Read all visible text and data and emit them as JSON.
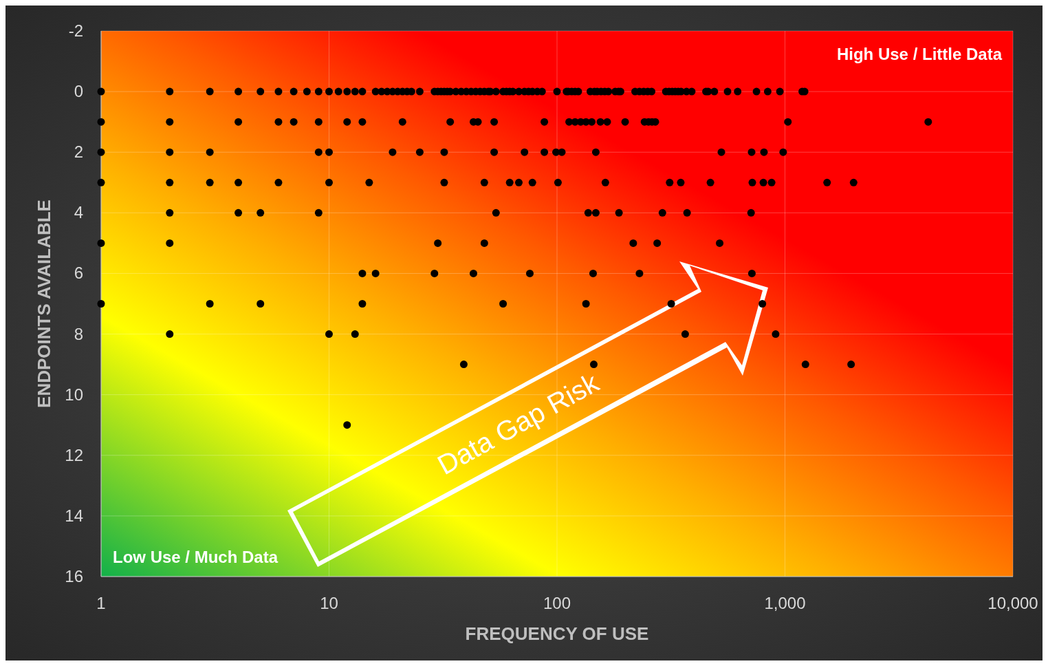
{
  "chart_data": {
    "type": "scatter",
    "xlabel": "FREQUENCY OF USE",
    "ylabel": "ENDPOINTS AVAILABLE",
    "annotations": [
      "High Use / Little Data",
      "Low Use / Much Data",
      "Data Gap Risk"
    ],
    "log": "x",
    "grid": true,
    "marker": "circle",
    "xlim": [
      1,
      10000
    ],
    "xticks": [
      1,
      10,
      100,
      {
        "value": 1000,
        "label": "1,000"
      },
      {
        "value": 10000,
        "label": "10,000"
      }
    ],
    "ylim": [
      16,
      -2
    ],
    "yticks": [
      -2,
      0,
      2,
      4,
      6,
      8,
      10,
      12,
      14,
      16
    ],
    "series": [
      {
        "color": "#000000",
        "x": [
          1,
          2,
          3,
          4,
          5,
          6,
          7,
          8,
          9,
          10,
          11,
          12,
          13,
          14,
          16,
          17,
          18,
          19,
          20,
          21,
          22,
          23,
          25,
          29,
          30,
          31,
          32,
          33,
          34,
          36,
          38,
          40,
          42,
          44,
          46,
          48,
          50,
          51,
          54,
          58,
          60,
          62,
          64,
          68,
          72,
          75,
          78,
          82,
          86,
          100,
          110,
          112,
          116,
          120,
          124,
          140,
          146,
          150,
          156,
          162,
          168,
          180,
          186,
          190,
          220,
          230,
          240,
          250,
          260,
          300,
          310,
          320,
          330,
          340,
          350,
          370,
          390,
          450,
          460,
          490,
          560,
          620,
          750,
          840,
          950,
          1190,
          1220,
          1,
          2,
          4,
          6,
          7,
          9,
          12,
          14,
          21,
          34,
          43,
          45,
          53,
          88,
          113,
          120,
          127,
          134,
          142,
          155,
          166,
          199,
          242,
          252,
          261,
          270,
          1030,
          4250,
          1,
          2,
          3,
          9,
          10,
          19,
          25,
          32,
          53,
          72,
          88,
          99,
          105,
          148,
          526,
          714,
          809,
          982,
          1,
          2,
          3,
          4,
          6,
          10,
          15,
          32,
          48,
          62,
          68,
          78,
          101,
          163,
          312,
          349,
          471,
          719,
          804,
          874,
          1530,
          2000,
          2,
          4,
          5,
          9,
          54,
          137,
          148,
          187,
          290,
          372,
          710,
          1,
          2,
          30,
          48,
          216,
          275,
          517,
          14,
          16,
          29,
          43,
          76,
          144,
          230,
          716,
          1,
          3,
          5,
          14,
          58,
          134,
          317,
          796,
          2,
          10,
          13,
          365,
          910,
          39,
          145,
          1230,
          1950,
          12
        ],
        "values": [
          0,
          0,
          0,
          0,
          0,
          0,
          0,
          0,
          0,
          0,
          0,
          0,
          0,
          0,
          0,
          0,
          0,
          0,
          0,
          0,
          0,
          0,
          0,
          0,
          0,
          0,
          0,
          0,
          0,
          0,
          0,
          0,
          0,
          0,
          0,
          0,
          0,
          0,
          0,
          0,
          0,
          0,
          0,
          0,
          0,
          0,
          0,
          0,
          0,
          0,
          0,
          0,
          0,
          0,
          0,
          0,
          0,
          0,
          0,
          0,
          0,
          0,
          0,
          0,
          0,
          0,
          0,
          0,
          0,
          0,
          0,
          0,
          0,
          0,
          0,
          0,
          0,
          0,
          0,
          0,
          0,
          0,
          0,
          0,
          0,
          0,
          0,
          1,
          1,
          1,
          1,
          1,
          1,
          1,
          1,
          1,
          1,
          1,
          1,
          1,
          1,
          1,
          1,
          1,
          1,
          1,
          1,
          1,
          1,
          1,
          1,
          1,
          1,
          1,
          1,
          2,
          2,
          2,
          2,
          2,
          2,
          2,
          2,
          2,
          2,
          2,
          2,
          2,
          2,
          2,
          2,
          2,
          2,
          3,
          3,
          3,
          3,
          3,
          3,
          3,
          3,
          3,
          3,
          3,
          3,
          3,
          3,
          3,
          3,
          3,
          3,
          3,
          3,
          3,
          3,
          4,
          4,
          4,
          4,
          4,
          4,
          4,
          4,
          4,
          4,
          4,
          5,
          5,
          5,
          5,
          5,
          5,
          5,
          6,
          6,
          6,
          6,
          6,
          6,
          6,
          6,
          7,
          7,
          7,
          7,
          7,
          7,
          7,
          7,
          8,
          8,
          8,
          8,
          8,
          9,
          9,
          9,
          9,
          11
        ]
      }
    ]
  }
}
